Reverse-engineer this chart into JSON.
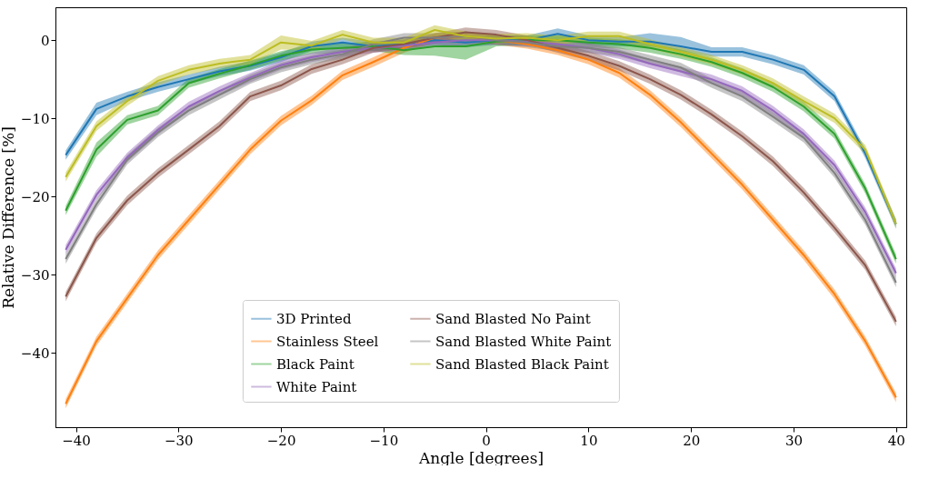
{
  "chart_data": {
    "type": "line",
    "xlabel": "Angle [degrees]",
    "ylabel": "Relative Difference [%]",
    "x": [
      -41,
      -38,
      -35,
      -32,
      -29,
      -26,
      -23,
      -20,
      -17,
      -14,
      -11,
      -8,
      -5,
      -2,
      1,
      4,
      7,
      10,
      13,
      16,
      19,
      22,
      25,
      28,
      31,
      34,
      37,
      40
    ],
    "xlim": [
      -42,
      41
    ],
    "ylim": [
      -49.5,
      4.2
    ],
    "xticks": [
      -40,
      -30,
      -20,
      -10,
      0,
      10,
      20,
      30,
      40
    ],
    "yticks": [
      -40,
      -30,
      -20,
      -10,
      0
    ],
    "grid": false,
    "legend": "bottom",
    "line_style": "solid",
    "series": [
      {
        "name": "3D Printed",
        "color": "#1f77b4",
        "values": [
          -14.7,
          -8.8,
          -7.2,
          -6,
          -5,
          -4,
          -3.3,
          -2.2,
          -0.8,
          -0.3,
          -0.8,
          -0.5,
          0,
          -0.3,
          0,
          0,
          0.8,
          0,
          -0.2,
          -0.2,
          -0.8,
          -1.5,
          -1.5,
          -2.5,
          -3.8,
          -7.2,
          -14.5,
          -23.5
        ],
        "lower": [
          -15.3,
          -9.6,
          -7.8,
          -6.6,
          -5.6,
          -4.6,
          -3.9,
          -2.8,
          -1.4,
          -0.9,
          -1.4,
          -1.1,
          -0.6,
          -0.9,
          -0.6,
          -0.6,
          0,
          -0.6,
          -0.8,
          -0.8,
          -1.4,
          -2.1,
          -2.1,
          -3.1,
          -4.4,
          -7.8,
          -15.1,
          -24.1
        ],
        "upper": [
          -14.1,
          -8.0,
          -6.6,
          -5.4,
          -4.4,
          -3.4,
          -2.7,
          -1.6,
          -0.2,
          0.3,
          -0.2,
          0.1,
          0.6,
          0.3,
          0.6,
          0.6,
          1.5,
          0.6,
          0.4,
          0.9,
          0.4,
          -0.9,
          -0.9,
          -1.9,
          -3.2,
          -6.6,
          -13.9,
          -22.9
        ]
      },
      {
        "name": "Stainless Steel",
        "color": "#ff7f0e",
        "values": [
          -46.5,
          -38.5,
          -33,
          -27.5,
          -23,
          -18.5,
          -14,
          -10.3,
          -7.7,
          -4.5,
          -2.8,
          -1,
          0.3,
          0.5,
          0,
          -0.5,
          -1.3,
          -2.5,
          -4.2,
          -7,
          -10.5,
          -14.5,
          -18.5,
          -23,
          -27.5,
          -32.5,
          -38.5,
          -45.7
        ],
        "lower": [
          -47.1,
          -39.1,
          -33.6,
          -28.1,
          -23.6,
          -19.1,
          -14.6,
          -10.9,
          -8.3,
          -5.1,
          -3.4,
          -1.6,
          -0.3,
          -0.1,
          -0.6,
          -1.1,
          -1.9,
          -3.1,
          -4.8,
          -7.6,
          -11.1,
          -15.1,
          -19.1,
          -23.6,
          -28.1,
          -33.1,
          -39.1,
          -46.3
        ],
        "upper": [
          -45.9,
          -37.9,
          -32.4,
          -26.9,
          -22.4,
          -17.9,
          -13.4,
          -9.7,
          -7.1,
          -3.9,
          -2.2,
          -0.4,
          0.9,
          1.1,
          0.6,
          0.1,
          -0.7,
          -1.9,
          -3.6,
          -6.4,
          -9.9,
          -13.9,
          -17.9,
          -22.4,
          -26.9,
          -31.9,
          -37.9,
          -45.1
        ]
      },
      {
        "name": "Black Paint",
        "color": "#2ca02c",
        "values": [
          -21.8,
          -14,
          -10.2,
          -9,
          -5.5,
          -4.3,
          -3.2,
          -2,
          -1.2,
          -1,
          -0.8,
          -1.3,
          -0.8,
          -0.8,
          -0.2,
          0,
          0,
          -0.3,
          -0.5,
          -1,
          -1.8,
          -2.8,
          -4.2,
          -6,
          -8.5,
          -12,
          -19,
          -28
        ],
        "lower": [
          -22.4,
          -14.9,
          -10.8,
          -9.6,
          -6.1,
          -4.9,
          -3.8,
          -2.6,
          -1.8,
          -1.6,
          -1.4,
          -1.9,
          -2.0,
          -2.5,
          -0.8,
          -0.6,
          -0.6,
          -0.9,
          -1.1,
          -1.6,
          -2.4,
          -3.4,
          -4.8,
          -6.6,
          -9.1,
          -12.6,
          -19.6,
          -28.6
        ],
        "upper": [
          -21.2,
          -13.1,
          -9.6,
          -8.4,
          -4.9,
          -3.7,
          -2.6,
          -1.4,
          -0.6,
          -0.4,
          -0.2,
          -0.7,
          -0.2,
          0.4,
          0.6,
          0.6,
          0.6,
          0.3,
          0.1,
          -0.4,
          -1.2,
          -2.2,
          -3.6,
          -5.4,
          -7.9,
          -11.4,
          -18.4,
          -27.4
        ]
      },
      {
        "name": "White Paint",
        "color": "#9467bd",
        "values": [
          -26.8,
          -19.8,
          -15,
          -11.5,
          -8.5,
          -6.5,
          -4.8,
          -3.2,
          -2.2,
          -1.5,
          -1,
          -0.7,
          -0.3,
          0,
          0,
          -0.2,
          -0.5,
          -1,
          -1.8,
          -3,
          -4,
          -5,
          -6.5,
          -9,
          -12,
          -16,
          -22,
          -29.8
        ],
        "lower": [
          -27.4,
          -20.4,
          -15.6,
          -12.1,
          -9.1,
          -7.1,
          -5.4,
          -3.8,
          -2.8,
          -2.1,
          -1.6,
          -1.3,
          -0.9,
          -0.6,
          -0.6,
          -0.8,
          -1.1,
          -1.6,
          -2.4,
          -3.6,
          -4.6,
          -5.6,
          -7.1,
          -9.6,
          -12.6,
          -16.6,
          -22.6,
          -30.4
        ],
        "upper": [
          -26.2,
          -19.2,
          -14.4,
          -10.9,
          -7.9,
          -5.9,
          -4.2,
          -2.6,
          -1.6,
          -0.9,
          -0.4,
          -0.1,
          0.3,
          0.6,
          0.6,
          0.4,
          0.1,
          -0.4,
          -1.2,
          -2.4,
          -3.4,
          -4.4,
          -5.9,
          -8.4,
          -11.4,
          -15.4,
          -21.4,
          -29.2
        ]
      },
      {
        "name": "Sand Blasted No Paint",
        "color": "#8c564b",
        "values": [
          -32.8,
          -25.3,
          -20.5,
          -17,
          -14,
          -11,
          -7.2,
          -5.8,
          -3.7,
          -2.5,
          -1,
          -0.5,
          0.3,
          1,
          0.7,
          0,
          -1,
          -2,
          -3.3,
          -5,
          -7,
          -9.5,
          -12.3,
          -15.5,
          -19.5,
          -24,
          -28.8,
          -36
        ],
        "lower": [
          -33.4,
          -25.9,
          -21.1,
          -17.6,
          -14.6,
          -11.6,
          -7.8,
          -6.4,
          -4.3,
          -3.1,
          -1.6,
          -1.1,
          -0.3,
          0.4,
          0.1,
          -0.6,
          -1.6,
          -2.6,
          -3.9,
          -5.6,
          -7.6,
          -10.1,
          -12.9,
          -16.1,
          -20.1,
          -24.6,
          -29.4,
          -36.6
        ],
        "upper": [
          -32.2,
          -24.7,
          -19.9,
          -16.4,
          -13.4,
          -10.4,
          -6.6,
          -5.2,
          -3.1,
          -1.9,
          -0.4,
          0.1,
          0.9,
          1.6,
          1.3,
          0.6,
          -0.4,
          -1.4,
          -2.7,
          -4.4,
          -6.4,
          -8.9,
          -11.7,
          -14.9,
          -18.9,
          -23.4,
          -28.2,
          -35.4
        ]
      },
      {
        "name": "Sand Blasted White Paint",
        "color": "#7f7f7f",
        "values": [
          -28,
          -21,
          -15.3,
          -11.8,
          -9,
          -7,
          -5,
          -3.5,
          -2.5,
          -1.8,
          -0.5,
          0.3,
          0.3,
          0.5,
          0,
          -0.3,
          -0.8,
          -1,
          -1.5,
          -2.5,
          -3.5,
          -5.5,
          -7.2,
          -9.8,
          -12.5,
          -17,
          -23,
          -31
        ],
        "lower": [
          -28.6,
          -21.6,
          -15.9,
          -12.4,
          -9.6,
          -7.6,
          -5.6,
          -4.1,
          -3.1,
          -2.4,
          -1.1,
          -0.3,
          -0.3,
          -0.1,
          -0.6,
          -0.9,
          -1.4,
          -1.6,
          -2.1,
          -3.1,
          -4.1,
          -6.1,
          -7.8,
          -10.4,
          -13.1,
          -17.6,
          -23.6,
          -31.6
        ],
        "upper": [
          -27.4,
          -20.4,
          -14.7,
          -11.2,
          -8.4,
          -6.4,
          -4.4,
          -2.9,
          -1.9,
          -1.2,
          0.1,
          0.9,
          0.9,
          1.1,
          0.6,
          0.3,
          -0.2,
          -0.4,
          -0.9,
          -1.9,
          -2.9,
          -4.9,
          -6.6,
          -9.2,
          -11.9,
          -16.4,
          -22.4,
          -30.4
        ]
      },
      {
        "name": "Sand Blasted Black Paint",
        "color": "#bcbd22",
        "values": [
          -17.5,
          -11,
          -7.8,
          -5.2,
          -3.8,
          -3,
          -2.5,
          -0.3,
          -0.7,
          0.7,
          -0.3,
          -0.3,
          1.3,
          0.5,
          0.2,
          0.3,
          0,
          0.5,
          0.5,
          -0.5,
          -1.5,
          -2.5,
          -3.8,
          -5.5,
          -7.8,
          -10,
          -14,
          -23.5
        ],
        "lower": [
          -18.1,
          -11.6,
          -8.4,
          -5.8,
          -4.4,
          -3.6,
          -3.1,
          -1.2,
          -1.3,
          0.1,
          -0.9,
          -0.9,
          0.5,
          -0.1,
          -0.4,
          -0.3,
          -0.6,
          -0.1,
          -0.1,
          -1.1,
          -2.1,
          -3.1,
          -4.4,
          -6.1,
          -8.4,
          -10.6,
          -14.6,
          -24.1
        ],
        "upper": [
          -16.9,
          -10.4,
          -7.2,
          -4.6,
          -3.2,
          -2.4,
          -1.9,
          0.6,
          -0.1,
          1.3,
          0.3,
          0.3,
          1.9,
          1.1,
          0.8,
          0.9,
          0.6,
          1.1,
          1.1,
          0.1,
          -0.9,
          -1.9,
          -3.2,
          -4.9,
          -7.2,
          -9.4,
          -13.4,
          -22.9
        ]
      }
    ]
  }
}
